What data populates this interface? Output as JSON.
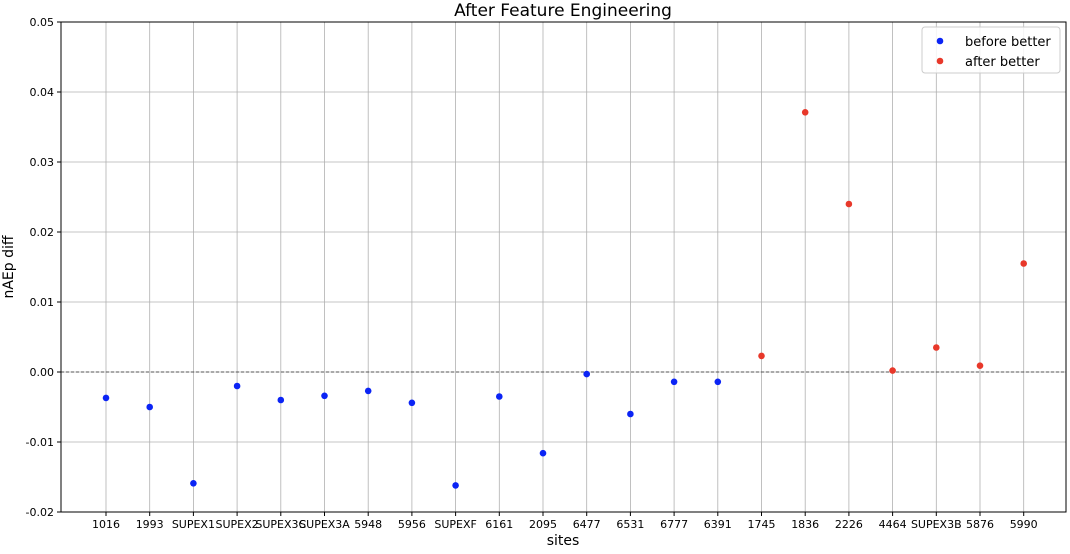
{
  "chart_data": {
    "type": "scatter",
    "title": "After Feature Engineering",
    "xlabel": "sites",
    "ylabel": "nAEp diff",
    "ylim": [
      -0.02,
      0.05
    ],
    "yticks": [
      "-0.02",
      "-0.01",
      "0.00",
      "0.01",
      "0.02",
      "0.03",
      "0.04",
      "0.05"
    ],
    "grid": true,
    "legend_position": "top-right",
    "zero_line": true,
    "categories": [
      "1016",
      "1993",
      "SUPEX1",
      "SUPEX2",
      "SUPEX3C",
      "SUPEX3A",
      "5948",
      "5956",
      "SUPEXF",
      "6161",
      "2095",
      "6477",
      "6531",
      "6777",
      "6391",
      "1745",
      "1836",
      "2226",
      "4464",
      "SUPEX3B",
      "5876",
      "5990"
    ],
    "series": [
      {
        "name": "before better",
        "color": "#0b24f5",
        "points": [
          {
            "x": "1016",
            "y": -0.0037
          },
          {
            "x": "1993",
            "y": -0.005
          },
          {
            "x": "SUPEX1",
            "y": -0.0159
          },
          {
            "x": "SUPEX2",
            "y": -0.002
          },
          {
            "x": "SUPEX3C",
            "y": -0.004
          },
          {
            "x": "SUPEX3A",
            "y": -0.0034
          },
          {
            "x": "5948",
            "y": -0.0027
          },
          {
            "x": "5956",
            "y": -0.0044
          },
          {
            "x": "SUPEXF",
            "y": -0.0162
          },
          {
            "x": "6161",
            "y": -0.0035
          },
          {
            "x": "2095",
            "y": -0.0116
          },
          {
            "x": "6477",
            "y": -0.0003
          },
          {
            "x": "6531",
            "y": -0.006
          },
          {
            "x": "6777",
            "y": -0.0014
          },
          {
            "x": "6391",
            "y": -0.0014
          }
        ]
      },
      {
        "name": "after better",
        "color": "#e8382a",
        "points": [
          {
            "x": "1745",
            "y": 0.0023
          },
          {
            "x": "1836",
            "y": 0.0371
          },
          {
            "x": "2226",
            "y": 0.024
          },
          {
            "x": "4464",
            "y": 0.0002
          },
          {
            "x": "SUPEX3B",
            "y": 0.0035
          },
          {
            "x": "5876",
            "y": 0.0009
          },
          {
            "x": "5990",
            "y": 0.0155
          }
        ]
      }
    ]
  }
}
